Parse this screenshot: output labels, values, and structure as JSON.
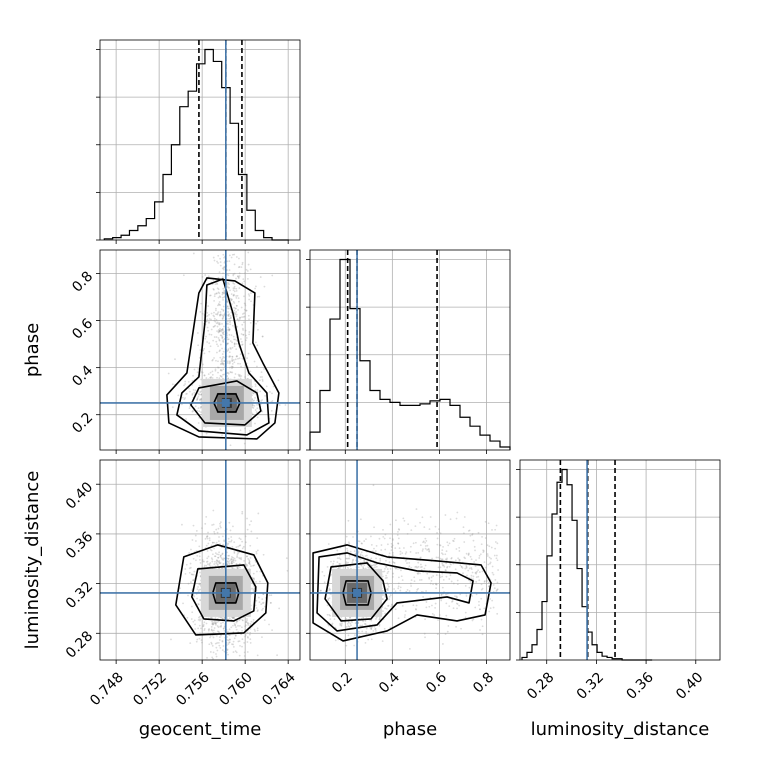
{
  "chart_data": {
    "type": "corner",
    "parameters": [
      {
        "name": "geocent_time",
        "range": [
          0.7465,
          0.7651
        ],
        "ticks": [
          0.748,
          0.752,
          0.756,
          0.76,
          0.764
        ],
        "tick_labels": [
          "0.748",
          "0.752",
          "0.756",
          "0.760",
          "0.764"
        ],
        "truth": 0.7582,
        "quantiles": [
          0.7557,
          0.7582,
          0.7597
        ]
      },
      {
        "name": "phase",
        "range": [
          0.05,
          0.9
        ],
        "ticks": [
          0.2,
          0.4,
          0.6,
          0.8
        ],
        "tick_labels": [
          "0.2",
          "0.4",
          "0.6",
          "0.8"
        ],
        "truth": 0.25,
        "quantiles": [
          0.21,
          0.25,
          0.59
        ]
      },
      {
        "name": "luminosity_distance",
        "range": [
          0.2585,
          0.4195
        ],
        "ticks": [
          0.28,
          0.32,
          0.36,
          0.4
        ],
        "tick_labels": [
          "0.28",
          "0.32",
          "0.36",
          "0.40"
        ],
        "truth": 0.3125,
        "quantiles": [
          0.291,
          0.313,
          0.335
        ]
      }
    ],
    "histograms": [
      {
        "parameter": "geocent_time",
        "bin_start": 0.7469,
        "bin_width": 0.00078,
        "counts": [
          1,
          2,
          4,
          8,
          12,
          18,
          32,
          55,
          80,
          112,
          125,
          148,
          160,
          150,
          128,
          98,
          55,
          25,
          8,
          2,
          0,
          0
        ]
      },
      {
        "parameter": "phase",
        "bin_start": 0.05,
        "bin_width": 0.0425,
        "counts": [
          12,
          40,
          88,
          128,
          95,
          60,
          40,
          34,
          32,
          30,
          30,
          31,
          33,
          34,
          30,
          22,
          16,
          10,
          6,
          2
        ]
      },
      {
        "parameter": "luminosity_distance",
        "bin_start": 0.2601,
        "bin_width": 0.00403,
        "counts": [
          2,
          6,
          12,
          24,
          46,
          82,
          115,
          140,
          150,
          138,
          110,
          72,
          42,
          22,
          12,
          6,
          3,
          2,
          1,
          1,
          0,
          0,
          0,
          0,
          0,
          0
        ]
      }
    ],
    "pairs": [
      {
        "x": "geocent_time",
        "y": "phase",
        "center": [
          0.7583,
          0.25
        ]
      },
      {
        "x": "geocent_time",
        "y": "luminosity_distance",
        "center": [
          0.7582,
          0.3125
        ]
      },
      {
        "x": "phase",
        "y": "luminosity_distance",
        "center": [
          0.25,
          0.3125
        ]
      }
    ],
    "truth_color": "#4477aa",
    "grid": true
  }
}
